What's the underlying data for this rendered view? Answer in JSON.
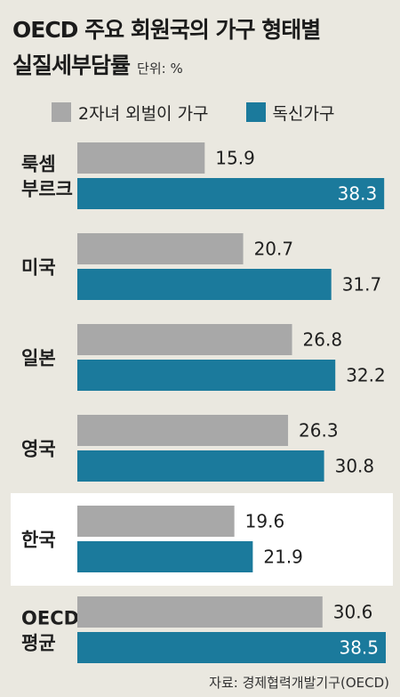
{
  "title": {
    "line1": "OECD 주요 회원국의 가구 형태별",
    "line2": "실질세부담률",
    "unit": "단위: %"
  },
  "source": "자료: 경제협력개발기구(OECD)",
  "colors": {
    "series_gray": "#a8a8a8",
    "series_blue": "#1b7a9c",
    "background": "#eae8e0",
    "highlight": "#ffffff"
  },
  "chart_data": {
    "type": "bar",
    "orientation": "horizontal",
    "categories": [
      [
        "룩셈",
        "부르크"
      ],
      [
        "미국"
      ],
      [
        "일본"
      ],
      [
        "영국"
      ],
      [
        "한국"
      ],
      [
        "OECD",
        "평균"
      ]
    ],
    "series": [
      {
        "name": "2자녀 외벌이 가구",
        "values": [
          15.9,
          20.7,
          26.8,
          26.3,
          19.6,
          30.6
        ],
        "labels": [
          "15.9",
          "20.7",
          "26.8",
          "26.3",
          "19.6",
          "30.6"
        ]
      },
      {
        "name": "독신가구",
        "values": [
          38.3,
          31.7,
          32.2,
          30.8,
          21.9,
          38.5
        ],
        "labels": [
          "38.3",
          "31.7",
          "32.2",
          "30.8",
          "21.9",
          "38.5"
        ]
      }
    ],
    "highlighted_category": "한국",
    "xlim": [
      0,
      38.5
    ],
    "grid": false,
    "legend": "top"
  }
}
